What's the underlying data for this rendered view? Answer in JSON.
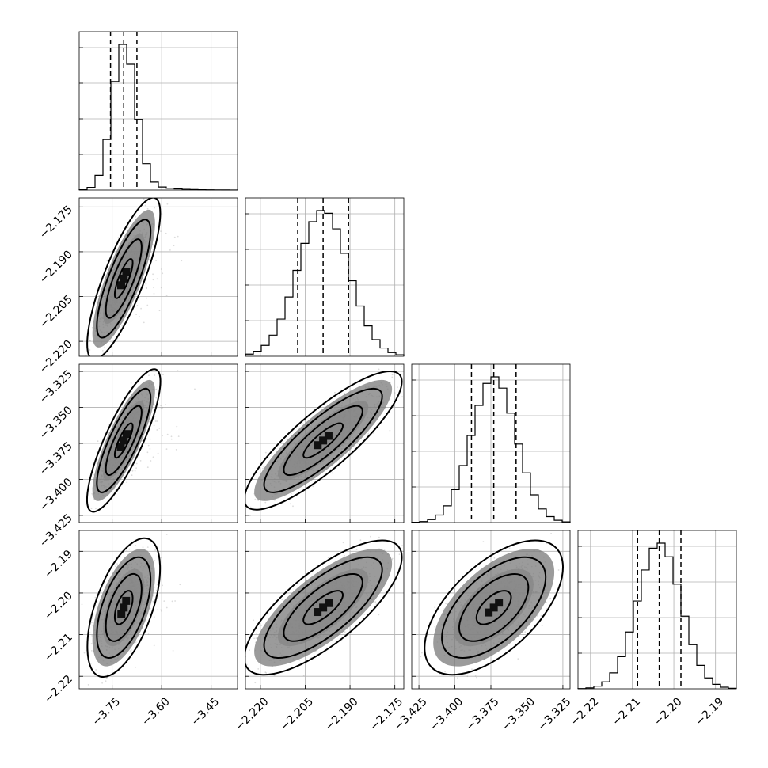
{
  "chart_data": {
    "type": "corner",
    "title": "",
    "parameters": [
      {
        "index": 0,
        "mean": -3.715,
        "sd": 0.035,
        "skew_tail_max": -3.45,
        "quantiles": [
          -3.755,
          -3.715,
          -3.675
        ]
      },
      {
        "index": 1,
        "mean": -2.199,
        "sd": 0.0085,
        "quantiles": [
          -2.2075,
          -2.199,
          -2.1905
        ]
      },
      {
        "index": 2,
        "mean": -3.373,
        "sd": 0.0155,
        "quantiles": [
          -3.3885,
          -3.373,
          -3.3575
        ]
      },
      {
        "index": 3,
        "mean": -2.2035,
        "sd": 0.0052,
        "quantiles": [
          -2.2087,
          -2.2035,
          -2.1983
        ]
      }
    ],
    "correlations": {
      "1_0": 0.8,
      "2_0": 0.82,
      "2_1": 0.85,
      "3_0": 0.55,
      "3_1": 0.75,
      "3_2": 0.6
    },
    "axes": [
      {
        "range": [
          -3.85,
          -3.37
        ],
        "ticks": [
          -3.75,
          -3.6,
          -3.45
        ],
        "tick_labels": [
          "−3.75",
          "−3.60",
          "−3.45"
        ]
      },
      {
        "range": [
          -2.225,
          -2.172
        ],
        "ticks": [
          -2.22,
          -2.205,
          -2.19,
          -2.175
        ],
        "tick_labels": [
          "−2.220",
          "−2.205",
          "−2.190",
          "−2.175"
        ]
      },
      {
        "range": [
          -3.43,
          -3.32
        ],
        "ticks": [
          -3.425,
          -3.4,
          -3.375,
          -3.35,
          -3.325
        ],
        "tick_labels": [
          "−3.425",
          "−3.400",
          "−3.375",
          "−3.350",
          "−3.325"
        ]
      },
      {
        "range": [
          -2.223,
          -2.185
        ],
        "ticks": [
          -2.22,
          -2.21,
          -2.2,
          -2.19
        ],
        "tick_labels": [
          "−2.22",
          "−2.21",
          "−2.20",
          "−2.19"
        ]
      }
    ],
    "grid": true,
    "legend": "none"
  }
}
